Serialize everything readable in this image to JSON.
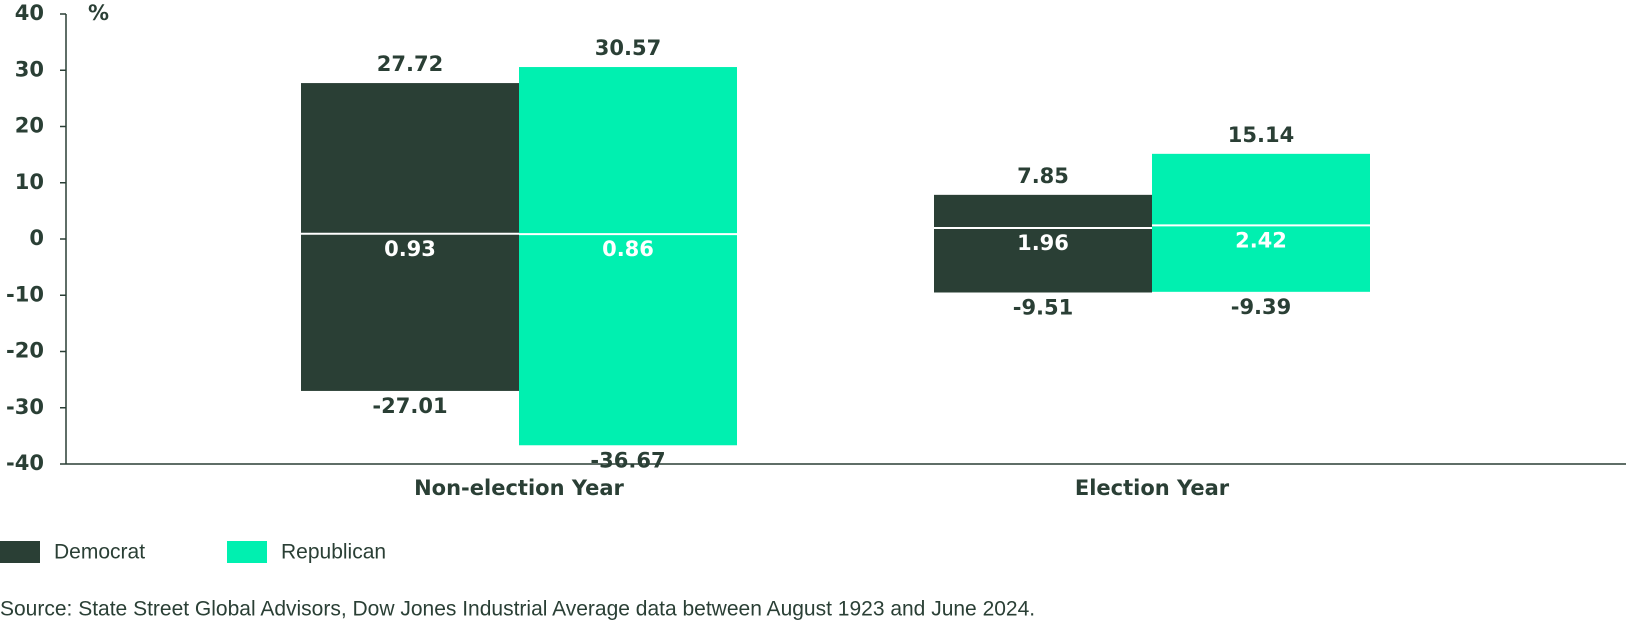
{
  "chart_data": {
    "type": "floating-bar",
    "y_label": "%",
    "categories": [
      "Non-election Year",
      "Election Year"
    ],
    "series": [
      {
        "name": "Democrat",
        "color": "#2a3f35",
        "high": [
          27.72,
          7.85
        ],
        "low": [
          -27.01,
          -9.51
        ],
        "median": [
          0.93,
          1.96
        ]
      },
      {
        "name": "Republican",
        "color": "#00f0b0",
        "high": [
          30.57,
          15.14
        ],
        "low": [
          -36.67,
          -9.39
        ],
        "median": [
          0.86,
          2.42
        ]
      }
    ],
    "ylim": [
      -40,
      40
    ],
    "yticks": [
      40,
      30,
      20,
      10,
      0,
      -10,
      -20,
      -30,
      -40
    ],
    "median_color": "#ffffff",
    "source": "Source: State Street Global Advisors, Dow Jones Industrial Average data between August 1923 and June 2024."
  }
}
